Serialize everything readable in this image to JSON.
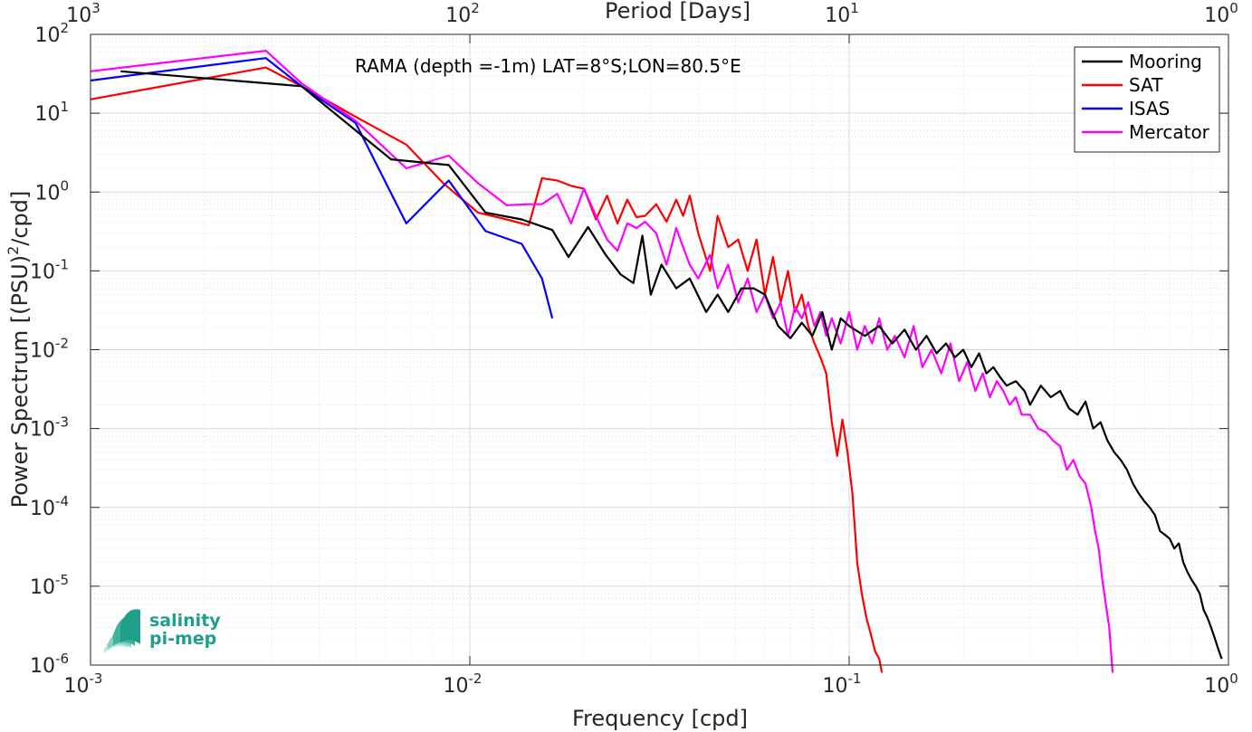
{
  "chart_data": {
    "type": "line",
    "annotation": "RAMA (depth =-1m) LAT=8°S;LON=80.5°E",
    "xlabel": "Frequency [cpd]",
    "ylabel": "Power Spectrum [(PSU)²/cpd]",
    "top_xlabel": "Period [Days]",
    "xscale": "log",
    "yscale": "log",
    "xlim": [
      0.001,
      1
    ],
    "ylim": [
      1e-06,
      100
    ],
    "grid": true,
    "minor_grid": true,
    "legend_position": "top-right",
    "x_ticks": [
      {
        "v": 0.001,
        "m": "10",
        "e": "-3"
      },
      {
        "v": 0.01,
        "m": "10",
        "e": "-2"
      },
      {
        "v": 0.1,
        "m": "10",
        "e": "-1"
      },
      {
        "v": 1,
        "m": "10",
        "e": "0"
      }
    ],
    "top_ticks": [
      {
        "v": 0.001,
        "m": "10",
        "e": "3"
      },
      {
        "v": 0.01,
        "m": "10",
        "e": "2"
      },
      {
        "v": 0.1,
        "m": "10",
        "e": "1"
      },
      {
        "v": 1,
        "m": "10",
        "e": "0"
      }
    ],
    "y_ticks": [
      {
        "v": 1e-06,
        "m": "10",
        "e": "-6"
      },
      {
        "v": 1e-05,
        "m": "10",
        "e": "-5"
      },
      {
        "v": 0.0001,
        "m": "10",
        "e": "-4"
      },
      {
        "v": 0.001,
        "m": "10",
        "e": "-3"
      },
      {
        "v": 0.01,
        "m": "10",
        "e": "-2"
      },
      {
        "v": 0.1,
        "m": "10",
        "e": "-1"
      },
      {
        "v": 1,
        "m": "10",
        "e": "0"
      },
      {
        "v": 10,
        "m": "10",
        "e": "1"
      },
      {
        "v": 100,
        "m": "10",
        "e": "2"
      }
    ],
    "series": [
      {
        "name": "Mooring",
        "color": "#000000",
        "x": [
          0.0012,
          0.0029,
          0.0036,
          0.0062,
          0.0088,
          0.011,
          0.0137,
          0.0165,
          0.0182,
          0.0205,
          0.0228,
          0.025,
          0.027,
          0.0285,
          0.03,
          0.032,
          0.035,
          0.038,
          0.042,
          0.045,
          0.048,
          0.052,
          0.056,
          0.06,
          0.065,
          0.07,
          0.075,
          0.08,
          0.085,
          0.09,
          0.095,
          0.1,
          0.11,
          0.12,
          0.13,
          0.14,
          0.15,
          0.16,
          0.17,
          0.18,
          0.19,
          0.2,
          0.21,
          0.22,
          0.23,
          0.24,
          0.25,
          0.26,
          0.275,
          0.29,
          0.3,
          0.32,
          0.34,
          0.36,
          0.38,
          0.4,
          0.42,
          0.44,
          0.46,
          0.48,
          0.5,
          0.52,
          0.54,
          0.56,
          0.58,
          0.6,
          0.62,
          0.64,
          0.66,
          0.68,
          0.7,
          0.72,
          0.74,
          0.76,
          0.78,
          0.8,
          0.82,
          0.84,
          0.86,
          0.88,
          0.9,
          0.92,
          0.94,
          0.96
        ],
        "y": [
          34,
          24,
          22,
          2.6,
          2.2,
          0.55,
          0.45,
          0.33,
          0.15,
          0.36,
          0.16,
          0.09,
          0.07,
          0.28,
          0.05,
          0.12,
          0.06,
          0.08,
          0.03,
          0.05,
          0.03,
          0.06,
          0.06,
          0.05,
          0.02,
          0.014,
          0.022,
          0.015,
          0.03,
          0.01,
          0.025,
          0.02,
          0.015,
          0.02,
          0.012,
          0.018,
          0.01,
          0.015,
          0.009,
          0.012,
          0.008,
          0.01,
          0.006,
          0.009,
          0.005,
          0.006,
          0.0045,
          0.0035,
          0.004,
          0.003,
          0.002,
          0.0035,
          0.0025,
          0.003,
          0.0018,
          0.0015,
          0.0022,
          0.001,
          0.0012,
          0.0007,
          0.0005,
          0.0004,
          0.0003,
          0.0002,
          0.00015,
          0.00012,
          0.0001,
          8e-05,
          5e-05,
          4.5e-05,
          4e-05,
          3e-05,
          3.5e-05,
          2e-05,
          1.5e-05,
          1.2e-05,
          1e-05,
          8e-06,
          5e-06,
          4e-06,
          3e-06,
          2.2e-06,
          1.6e-06,
          1.2e-06
        ]
      },
      {
        "name": "SAT",
        "color": "#ff0000",
        "x": [
          0.001,
          0.0029,
          0.0036,
          0.005,
          0.0068,
          0.0085,
          0.0105,
          0.0125,
          0.0143,
          0.0155,
          0.017,
          0.0185,
          0.02,
          0.0215,
          0.023,
          0.0245,
          0.026,
          0.0275,
          0.029,
          0.031,
          0.033,
          0.035,
          0.0365,
          0.038,
          0.04,
          0.043,
          0.045,
          0.048,
          0.051,
          0.054,
          0.057,
          0.06,
          0.063,
          0.066,
          0.069,
          0.072,
          0.075,
          0.078,
          0.081,
          0.084,
          0.087,
          0.09,
          0.093,
          0.096,
          0.099,
          0.102,
          0.105,
          0.108,
          0.111,
          0.114,
          0.117,
          0.12,
          0.122
        ],
        "y": [
          15,
          38,
          22,
          9,
          4,
          1.3,
          0.55,
          0.45,
          0.38,
          1.5,
          1.4,
          1.2,
          1.1,
          0.45,
          0.9,
          0.4,
          0.8,
          0.48,
          0.5,
          0.7,
          0.42,
          0.8,
          0.5,
          0.9,
          0.3,
          0.1,
          0.5,
          0.2,
          0.25,
          0.1,
          0.25,
          0.05,
          0.15,
          0.04,
          0.1,
          0.03,
          0.05,
          0.02,
          0.012,
          0.008,
          0.005,
          0.0012,
          0.00045,
          0.0013,
          0.0005,
          0.00015,
          2e-05,
          8e-06,
          4e-06,
          2.5e-06,
          1.5e-06,
          1.2e-06,
          8e-07
        ]
      },
      {
        "name": "ISAS",
        "color": "#0000ff",
        "x": [
          0.001,
          0.0029,
          0.0036,
          0.005,
          0.0068,
          0.0088,
          0.011,
          0.0137,
          0.0155,
          0.0165
        ],
        "y": [
          26,
          50,
          22,
          7.5,
          0.4,
          1.4,
          0.32,
          0.22,
          0.08,
          0.025
        ]
      },
      {
        "name": "Mercator",
        "color": "#ff00ff",
        "x": [
          0.001,
          0.0029,
          0.0036,
          0.005,
          0.0068,
          0.0088,
          0.0105,
          0.0125,
          0.0143,
          0.0155,
          0.017,
          0.0185,
          0.02,
          0.0215,
          0.023,
          0.0245,
          0.026,
          0.0275,
          0.029,
          0.031,
          0.033,
          0.035,
          0.0365,
          0.038,
          0.04,
          0.043,
          0.045,
          0.048,
          0.051,
          0.054,
          0.057,
          0.06,
          0.063,
          0.066,
          0.069,
          0.072,
          0.075,
          0.078,
          0.081,
          0.084,
          0.087,
          0.09,
          0.095,
          0.1,
          0.105,
          0.11,
          0.115,
          0.12,
          0.126,
          0.132,
          0.14,
          0.148,
          0.156,
          0.165,
          0.175,
          0.185,
          0.195,
          0.205,
          0.215,
          0.225,
          0.235,
          0.245,
          0.255,
          0.265,
          0.275,
          0.285,
          0.3,
          0.315,
          0.33,
          0.345,
          0.36,
          0.375,
          0.39,
          0.405,
          0.42,
          0.435,
          0.445,
          0.455,
          0.465,
          0.475,
          0.485,
          0.495
        ],
        "y": [
          34,
          62,
          24,
          8,
          2,
          2.9,
          1.3,
          0.68,
          0.7,
          0.7,
          0.95,
          0.4,
          1.1,
          0.5,
          0.25,
          0.18,
          0.4,
          0.35,
          0.42,
          0.3,
          0.12,
          0.35,
          0.2,
          0.12,
          0.08,
          0.16,
          0.06,
          0.12,
          0.04,
          0.08,
          0.03,
          0.05,
          0.025,
          0.04,
          0.015,
          0.035,
          0.025,
          0.04,
          0.02,
          0.03,
          0.015,
          0.025,
          0.012,
          0.03,
          0.01,
          0.02,
          0.012,
          0.025,
          0.01,
          0.015,
          0.008,
          0.02,
          0.006,
          0.01,
          0.005,
          0.012,
          0.004,
          0.007,
          0.003,
          0.005,
          0.0025,
          0.004,
          0.003,
          0.002,
          0.0025,
          0.0015,
          0.0015,
          0.001,
          0.0009,
          0.0007,
          0.0006,
          0.0003,
          0.0004,
          0.00025,
          0.0002,
          0.0001,
          5e-05,
          3e-05,
          1.2e-05,
          6e-06,
          3e-06,
          8e-07
        ]
      }
    ]
  },
  "logo": {
    "line1": "salinity",
    "line2": "pi-mep",
    "color": "#1f9e89"
  }
}
